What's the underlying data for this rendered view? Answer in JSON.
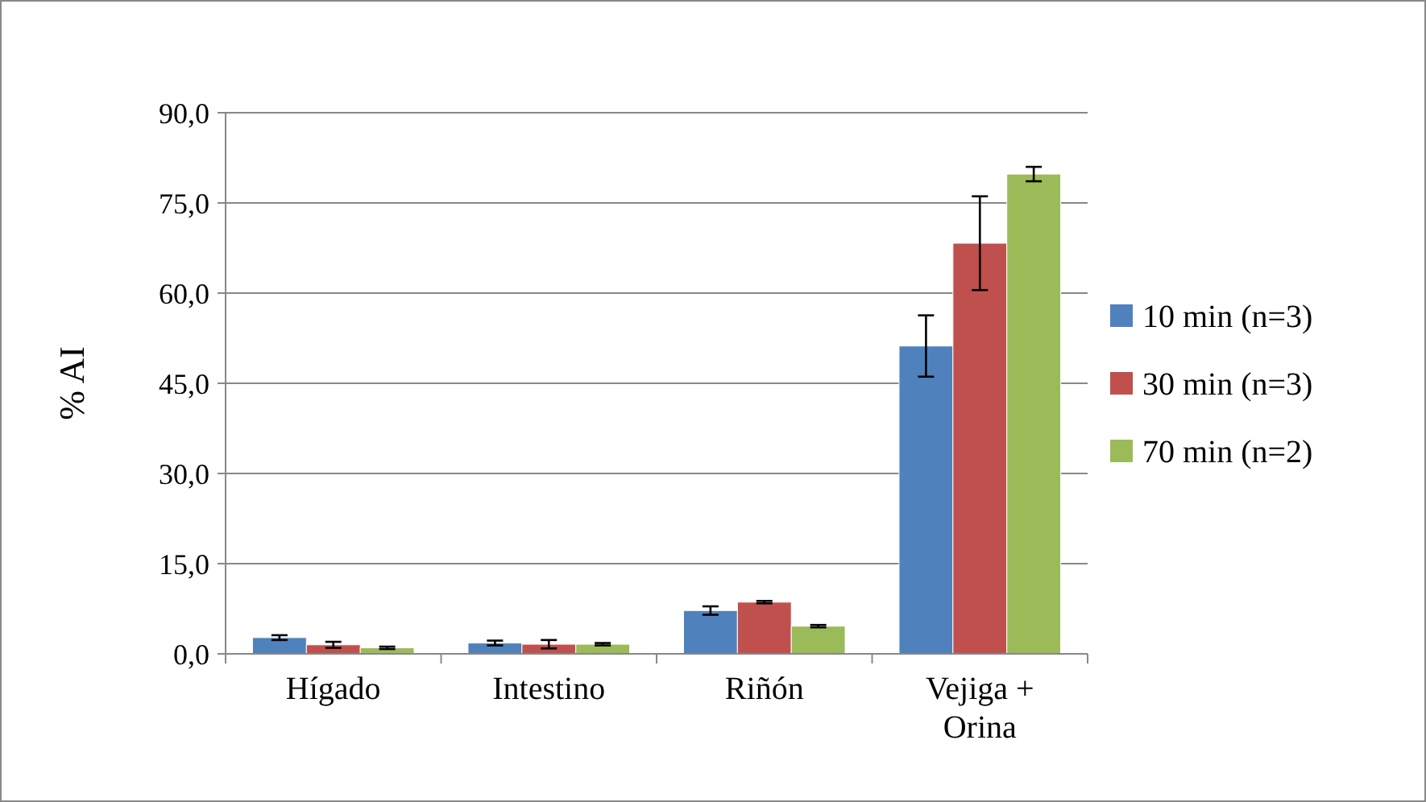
{
  "chart_data": {
    "type": "bar",
    "ylabel": "% AI",
    "categories": [
      "Hígado",
      "Intestino",
      "Riñón",
      "Vejiga + Orina"
    ],
    "series": [
      {
        "name": "10 min (n=3)",
        "color": "#4f81bd",
        "values": [
          2.7,
          1.8,
          7.2,
          51.2
        ],
        "errors": [
          0.4,
          0.4,
          0.7,
          5.1
        ]
      },
      {
        "name": "30 min (n=3)",
        "color": "#c0504d",
        "values": [
          1.5,
          1.6,
          8.6,
          68.3
        ],
        "errors": [
          0.5,
          0.7,
          0.2,
          7.8
        ]
      },
      {
        "name": "70 min (n=2)",
        "color": "#9bbb59",
        "values": [
          1.0,
          1.6,
          4.6,
          79.8
        ],
        "errors": [
          0.2,
          0.2,
          0.2,
          1.2
        ]
      }
    ],
    "ylim": [
      0,
      90
    ],
    "yticks": [
      {
        "value": 0,
        "label": "0,0"
      },
      {
        "value": 15,
        "label": "15,0"
      },
      {
        "value": 30,
        "label": "30,0"
      },
      {
        "value": 45,
        "label": "45,0"
      },
      {
        "value": 60,
        "label": "60,0"
      },
      {
        "value": 75,
        "label": "75,0"
      },
      {
        "value": 90,
        "label": "90,0"
      }
    ],
    "grid": "y",
    "legend": "right"
  }
}
